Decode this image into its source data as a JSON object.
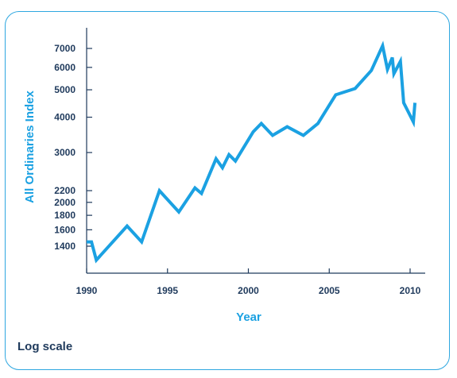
{
  "chart_data": {
    "type": "line",
    "title": "",
    "xlabel": "Year",
    "ylabel": "All Ordinaries Index",
    "xscale": "linear",
    "yscale": "log",
    "xlim": [
      1990,
      2011
    ],
    "ylim": [
      1150,
      8200
    ],
    "x_ticks": [
      1990,
      1995,
      2000,
      2005,
      2010
    ],
    "y_ticks": [
      1400,
      1600,
      1800,
      2000,
      2200,
      3000,
      4000,
      5000,
      6000,
      7000
    ],
    "grid": false,
    "legend": "none",
    "line_color": "#1ba1e2",
    "series": [
      {
        "x": [
          1990.0,
          1990.3,
          1990.6,
          1992.5,
          1993.4,
          1994.5,
          1995.7,
          1996.7,
          1997.1,
          1998.0,
          1998.4,
          1998.8,
          1999.2,
          2000.3,
          2000.8,
          2001.5,
          2002.4,
          2003.4,
          2004.3,
          2005.4,
          2006.6,
          2007.6,
          2008.3,
          2008.6,
          2008.9,
          2009.0,
          2009.4,
          2009.6,
          2010.2,
          2010.3
        ],
        "y": [
          1450,
          1450,
          1250,
          1650,
          1450,
          2200,
          1850,
          2250,
          2150,
          2850,
          2650,
          2950,
          2800,
          3550,
          3800,
          3450,
          3700,
          3450,
          3800,
          4800,
          5050,
          5850,
          7150,
          5900,
          6500,
          5700,
          6300,
          4500,
          3850,
          4500
        ]
      }
    ]
  },
  "note": "Log scale"
}
